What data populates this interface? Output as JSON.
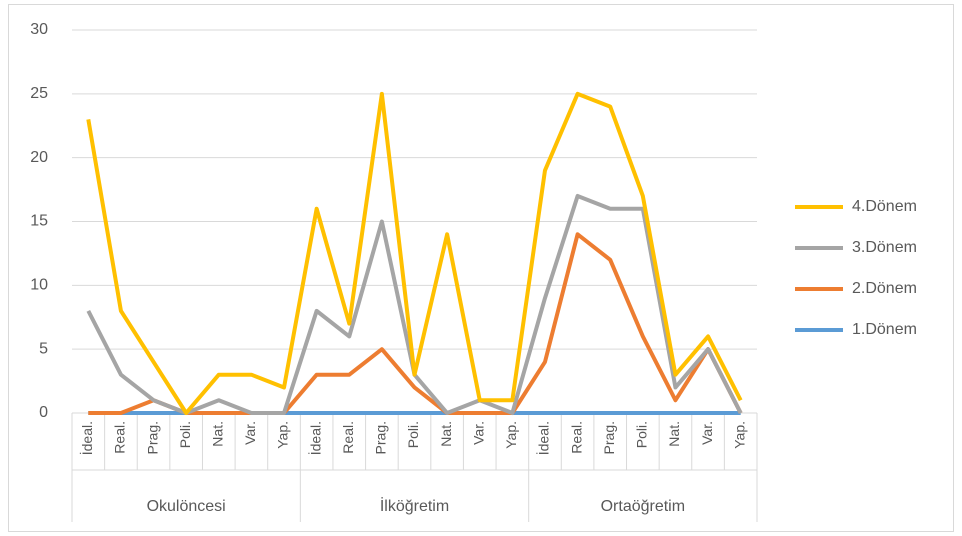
{
  "chart_data": {
    "type": "line",
    "categories": [
      "İdeal.",
      "Real.",
      "Prag.",
      "Poli.",
      "Nat.",
      "Var.",
      "Yap.",
      "İdeal.",
      "Real.",
      "Prag.",
      "Poli.",
      "Nat.",
      "Var.",
      "Yap.",
      "İdeal.",
      "Real.",
      "Prag.",
      "Poli.",
      "Nat.",
      "Var.",
      "Yap."
    ],
    "groups": [
      "Okulöncesi",
      "İlköğretim",
      "Ortaöğretim"
    ],
    "series": [
      {
        "name": "1.Dönem",
        "color": "#5b9bd5",
        "values": [
          0,
          0,
          0,
          0,
          0,
          0,
          0,
          0,
          0,
          0,
          0,
          0,
          0,
          0,
          0,
          0,
          0,
          0,
          0,
          0,
          0
        ]
      },
      {
        "name": "2.Dönem",
        "color": "#ed7d31",
        "values": [
          0,
          0,
          1,
          0,
          0,
          0,
          0,
          3,
          3,
          5,
          2,
          0,
          0,
          0,
          4,
          14,
          12,
          6,
          1,
          5,
          0
        ]
      },
      {
        "name": "3.Dönem",
        "color": "#a5a5a5",
        "values": [
          8,
          3,
          1,
          0,
          1,
          0,
          0,
          8,
          6,
          15,
          3,
          0,
          1,
          0,
          9,
          17,
          16,
          16,
          2,
          5,
          0
        ]
      },
      {
        "name": "4.Dönem",
        "color": "#ffc000",
        "values": [
          23,
          8,
          4,
          0,
          3,
          3,
          2,
          16,
          7,
          25,
          3,
          14,
          1,
          1,
          19,
          25,
          24,
          17,
          3,
          6,
          1
        ]
      }
    ],
    "ylim": [
      0,
      30
    ],
    "yticks": [
      0,
      5,
      10,
      15,
      20,
      25,
      30
    ],
    "grid": true,
    "legend": "right"
  }
}
